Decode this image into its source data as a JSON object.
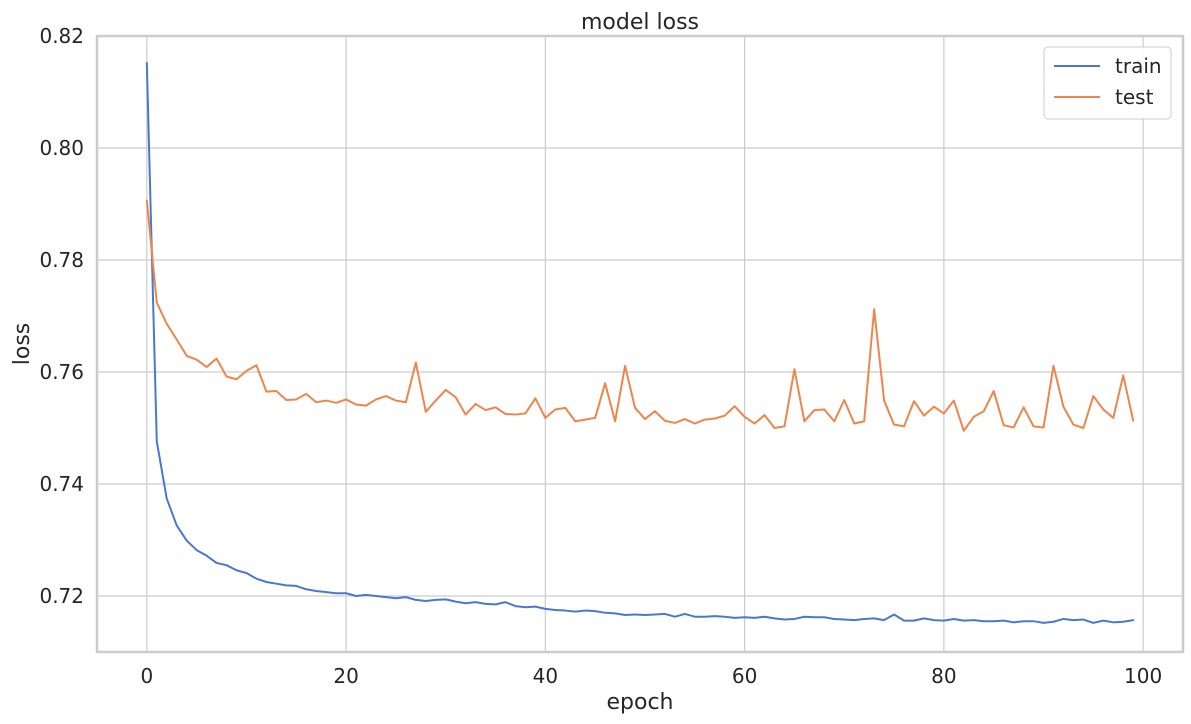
{
  "chart_data": {
    "type": "line",
    "title": "model loss",
    "xlabel": "epoch",
    "ylabel": "loss",
    "xlim": [
      -5,
      104
    ],
    "ylim": [
      0.71,
      0.82
    ],
    "x_ticks": [
      0,
      20,
      40,
      60,
      80,
      100
    ],
    "y_ticks": [
      0.72,
      0.74,
      0.76,
      0.78,
      0.8,
      0.82
    ],
    "x_tick_labels": [
      "0",
      "20",
      "40",
      "60",
      "80",
      "100"
    ],
    "y_tick_labels": [
      "0.72",
      "0.74",
      "0.76",
      "0.78",
      "0.80",
      "0.82"
    ],
    "grid": true,
    "legend_position": "top-right",
    "series": [
      {
        "name": "train",
        "color": "#4878d0",
        "x_start": 0,
        "values": [
          0.8152,
          0.7476,
          0.7374,
          0.7326,
          0.7299,
          0.7282,
          0.7272,
          0.7259,
          0.7255,
          0.7246,
          0.7241,
          0.7231,
          0.7225,
          0.7222,
          0.7219,
          0.7218,
          0.7212,
          0.7209,
          0.7207,
          0.7205,
          0.7205,
          0.72,
          0.7202,
          0.72,
          0.7198,
          0.7196,
          0.7198,
          0.7193,
          0.7191,
          0.7193,
          0.7194,
          0.719,
          0.7187,
          0.7189,
          0.7186,
          0.7185,
          0.7189,
          0.7182,
          0.718,
          0.7181,
          0.7177,
          0.7175,
          0.7174,
          0.7172,
          0.7174,
          0.7173,
          0.717,
          0.7169,
          0.7166,
          0.7167,
          0.7166,
          0.7167,
          0.7168,
          0.7163,
          0.7168,
          0.7163,
          0.7163,
          0.7164,
          0.7163,
          0.7161,
          0.7162,
          0.7161,
          0.7163,
          0.716,
          0.7158,
          0.7159,
          0.7163,
          0.7162,
          0.7162,
          0.7159,
          0.7158,
          0.7157,
          0.7159,
          0.716,
          0.7157,
          0.7167,
          0.7156,
          0.7156,
          0.716,
          0.7157,
          0.7156,
          0.7159,
          0.7156,
          0.7157,
          0.7155,
          0.7155,
          0.7156,
          0.7153,
          0.7155,
          0.7155,
          0.7152,
          0.7154,
          0.7159,
          0.7157,
          0.7158,
          0.7152,
          0.7156,
          0.7153,
          0.7154,
          0.7157
        ]
      },
      {
        "name": "test",
        "color": "#ee854a",
        "x_start": 0,
        "values": [
          0.7906,
          0.7724,
          0.7686,
          0.7658,
          0.7629,
          0.7622,
          0.7609,
          0.7624,
          0.7592,
          0.7587,
          0.7602,
          0.7612,
          0.7565,
          0.7566,
          0.755,
          0.7551,
          0.7561,
          0.7546,
          0.7549,
          0.7545,
          0.7551,
          0.7542,
          0.754,
          0.7551,
          0.7557,
          0.7549,
          0.7546,
          0.7617,
          0.7529,
          0.7549,
          0.7568,
          0.7555,
          0.7524,
          0.7543,
          0.7532,
          0.7537,
          0.7525,
          0.7524,
          0.7526,
          0.7553,
          0.7518,
          0.7533,
          0.7536,
          0.7512,
          0.7515,
          0.7518,
          0.758,
          0.7512,
          0.7611,
          0.7536,
          0.7516,
          0.753,
          0.7513,
          0.7509,
          0.7516,
          0.7508,
          0.7515,
          0.7517,
          0.7522,
          0.7539,
          0.752,
          0.7508,
          0.7523,
          0.75,
          0.7503,
          0.7605,
          0.7512,
          0.7532,
          0.7533,
          0.7512,
          0.755,
          0.7508,
          0.7512,
          0.7712,
          0.7549,
          0.7506,
          0.7503,
          0.7548,
          0.7522,
          0.7538,
          0.7526,
          0.7549,
          0.7495,
          0.752,
          0.753,
          0.7566,
          0.7505,
          0.7501,
          0.7537,
          0.7503,
          0.7501,
          0.7611,
          0.7538,
          0.7506,
          0.75,
          0.7557,
          0.7533,
          0.7518,
          0.7594,
          0.7513
        ]
      }
    ]
  }
}
